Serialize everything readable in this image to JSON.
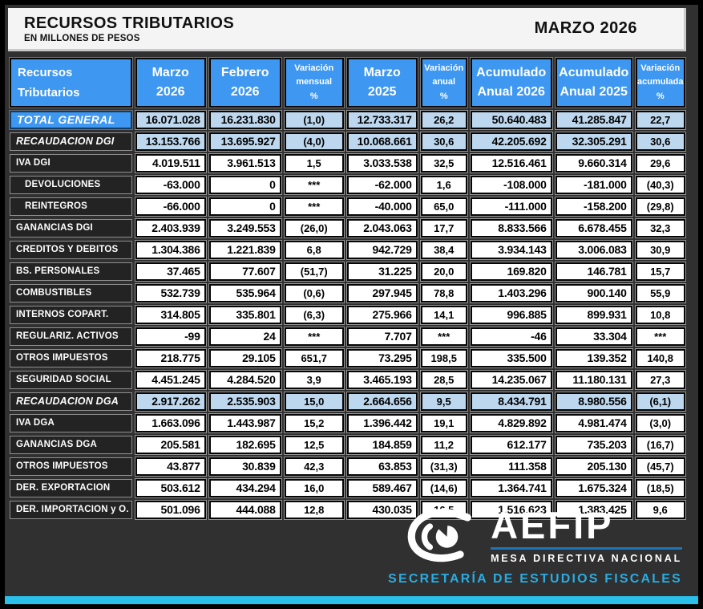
{
  "title": {
    "main": "RECURSOS TRIBUTARIOS",
    "subtitle": "EN MILLONES DE PESOS",
    "period": "MARZO 2026"
  },
  "header_cells": [
    {
      "lines": [
        "Recursos",
        "Tributarios"
      ],
      "variant": "label"
    },
    {
      "lines": [
        "Marzo",
        "2026"
      ],
      "variant": "big"
    },
    {
      "lines": [
        "Febrero",
        "2026"
      ],
      "variant": "big"
    },
    {
      "lines": [
        "Variación",
        "mensual",
        "%"
      ],
      "variant": "small"
    },
    {
      "lines": [
        "Marzo",
        "2025"
      ],
      "variant": "big"
    },
    {
      "lines": [
        "Variación",
        "anual",
        "%"
      ],
      "variant": "small"
    },
    {
      "lines": [
        "Acumulado",
        "Anual 2026"
      ],
      "variant": "big"
    },
    {
      "lines": [
        "Acumulado",
        "Anual 2025"
      ],
      "variant": "big"
    },
    {
      "lines": [
        "Variación",
        "acumulada",
        "%"
      ],
      "variant": "small"
    }
  ],
  "chart_data": {
    "type": "table",
    "title": "RECURSOS TRIBUTARIOS - MARZO 2026 (en millones de pesos)",
    "columns": [
      "Recursos Tributarios",
      "Marzo 2026",
      "Febrero 2026",
      "Variación mensual %",
      "Marzo 2025",
      "Variación anual %",
      "Acumulado Anual 2026",
      "Acumulado Anual 2025",
      "Variación acumulada %"
    ],
    "rows": [
      {
        "label": "TOTAL GENERAL",
        "style": "total",
        "values": [
          "16.071.028",
          "16.231.830",
          "(1,0)",
          "12.733.317",
          "26,2",
          "50.640.483",
          "41.285.847",
          "22,7"
        ]
      },
      {
        "label": "RECAUDACION DGI",
        "style": "section",
        "values": [
          "13.153.766",
          "13.695.927",
          "(4,0)",
          "10.068.661",
          "30,6",
          "42.205.692",
          "32.305.291",
          "30,6"
        ]
      },
      {
        "label": "IVA DGI",
        "style": "normal",
        "values": [
          "4.019.511",
          "3.961.513",
          "1,5",
          "3.033.538",
          "32,5",
          "12.516.461",
          "9.660.314",
          "29,6"
        ]
      },
      {
        "label": "DEVOLUCIONES",
        "style": "indent",
        "values": [
          "-63.000",
          "0",
          "***",
          "-62.000",
          "1,6",
          "-108.000",
          "-181.000",
          "(40,3)"
        ]
      },
      {
        "label": "REINTEGROS",
        "style": "indent",
        "values": [
          "-66.000",
          "0",
          "***",
          "-40.000",
          "65,0",
          "-111.000",
          "-158.200",
          "(29,8)"
        ]
      },
      {
        "label": "GANANCIAS DGI",
        "style": "normal",
        "values": [
          "2.403.939",
          "3.249.553",
          "(26,0)",
          "2.043.063",
          "17,7",
          "8.833.566",
          "6.678.455",
          "32,3"
        ]
      },
      {
        "label": "CREDITOS Y DEBITOS",
        "style": "normal",
        "values": [
          "1.304.386",
          "1.221.839",
          "6,8",
          "942.729",
          "38,4",
          "3.934.143",
          "3.006.083",
          "30,9"
        ]
      },
      {
        "label": "BS. PERSONALES",
        "style": "normal",
        "values": [
          "37.465",
          "77.607",
          "(51,7)",
          "31.225",
          "20,0",
          "169.820",
          "146.781",
          "15,7"
        ]
      },
      {
        "label": "COMBUSTIBLES",
        "style": "normal",
        "values": [
          "532.739",
          "535.964",
          "(0,6)",
          "297.945",
          "78,8",
          "1.403.296",
          "900.140",
          "55,9"
        ]
      },
      {
        "label": "INTERNOS COPART.",
        "style": "normal",
        "values": [
          "314.805",
          "335.801",
          "(6,3)",
          "275.966",
          "14,1",
          "996.885",
          "899.931",
          "10,8"
        ]
      },
      {
        "label": "REGULARIZ. ACTIVOS",
        "style": "normal",
        "values": [
          "-99",
          "24",
          "***",
          "7.707",
          "***",
          "-46",
          "33.304",
          "***"
        ]
      },
      {
        "label": "OTROS IMPUESTOS",
        "style": "normal",
        "values": [
          "218.775",
          "29.105",
          "651,7",
          "73.295",
          "198,5",
          "335.500",
          "139.352",
          "140,8"
        ]
      },
      {
        "label": "SEGURIDAD SOCIAL",
        "style": "normal",
        "values": [
          "4.451.245",
          "4.284.520",
          "3,9",
          "3.465.193",
          "28,5",
          "14.235.067",
          "11.180.131",
          "27,3"
        ]
      },
      {
        "label": "RECAUDACION DGA",
        "style": "section",
        "values": [
          "2.917.262",
          "2.535.903",
          "15,0",
          "2.664.656",
          "9,5",
          "8.434.791",
          "8.980.556",
          "(6,1)"
        ]
      },
      {
        "label": "IVA DGA",
        "style": "normal",
        "values": [
          "1.663.096",
          "1.443.987",
          "15,2",
          "1.396.442",
          "19,1",
          "4.829.892",
          "4.981.474",
          "(3,0)"
        ]
      },
      {
        "label": "GANANCIAS DGA",
        "style": "normal",
        "values": [
          "205.581",
          "182.695",
          "12,5",
          "184.859",
          "11,2",
          "612.177",
          "735.203",
          "(16,7)"
        ]
      },
      {
        "label": "OTROS IMPUESTOS",
        "style": "normal",
        "values": [
          "43.877",
          "30.839",
          "42,3",
          "63.853",
          "(31,3)",
          "111.358",
          "205.130",
          "(45,7)"
        ]
      },
      {
        "label": "DER. EXPORTACION",
        "style": "normal",
        "values": [
          "503.612",
          "434.294",
          "16,0",
          "589.467",
          "(14,6)",
          "1.364.741",
          "1.675.324",
          "(18,5)"
        ]
      },
      {
        "label": "DER. IMPORTACION y O.",
        "style": "normal",
        "values": [
          "501.096",
          "444.088",
          "12,8",
          "430.035",
          "16,5",
          "1.516.623",
          "1.383.425",
          "9,6"
        ]
      }
    ]
  },
  "footer": {
    "brand": "AEFIP",
    "division": "MESA DIRECTIVA NACIONAL",
    "secretaria": "SECRETARÍA  DE  ESTUDIOS  FISCALES"
  },
  "colors": {
    "header_blue": "#3E97F0",
    "highlight_blue": "#BDD7EE",
    "cyan_bar": "#29BFE8",
    "accent_cyan": "#2AACE2",
    "underline_blue": "#1B75BB"
  }
}
